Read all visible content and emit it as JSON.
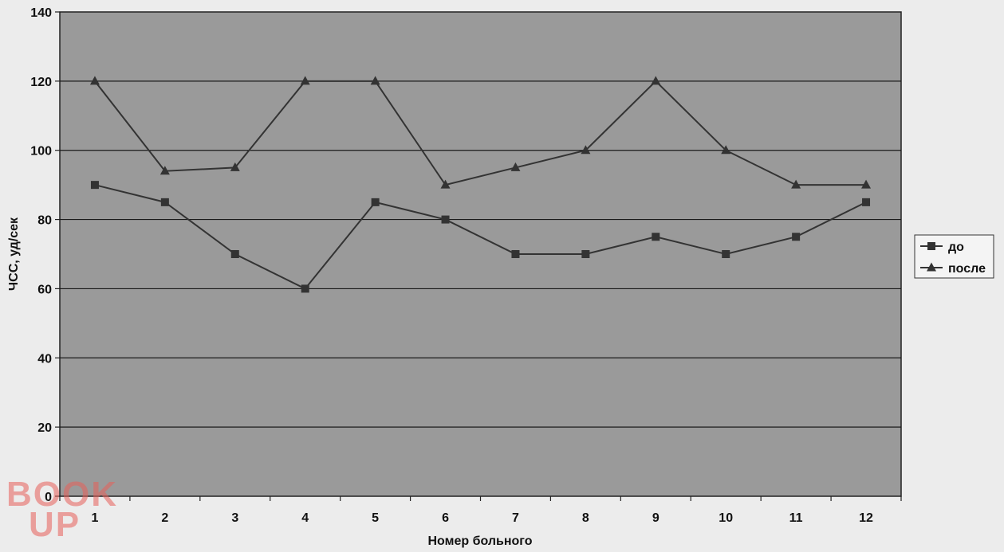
{
  "colors": {
    "page_background": "#ececec",
    "plot_background": "#9a9a9a",
    "grid": "#1a1a1a",
    "series_line": "#333333",
    "watermark": "#e8605a"
  },
  "watermark": {
    "line1": "BOOK",
    "line2": "UP"
  },
  "chart_data": {
    "type": "line",
    "title": "",
    "xlabel": "Номер больного",
    "ylabel": "ЧСС, уд/сек",
    "categories": [
      "1",
      "2",
      "3",
      "4",
      "5",
      "6",
      "7",
      "8",
      "9",
      "10",
      "11",
      "12"
    ],
    "ylim": [
      0,
      140
    ],
    "yticks": [
      "0",
      "20",
      "40",
      "60",
      "80",
      "100",
      "120",
      "140"
    ],
    "grid": true,
    "legend_position": "right",
    "series": [
      {
        "name": "до",
        "marker": "square",
        "values": [
          90,
          85,
          70,
          60,
          85,
          80,
          70,
          70,
          75,
          70,
          75,
          85
        ]
      },
      {
        "name": "после",
        "marker": "triangle",
        "values": [
          120,
          94,
          95,
          120,
          120,
          90,
          95,
          100,
          120,
          100,
          90,
          90
        ]
      }
    ]
  }
}
